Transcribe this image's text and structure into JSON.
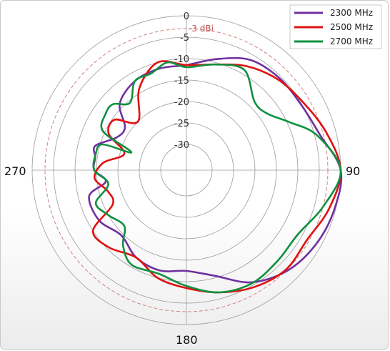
{
  "chart_data": {
    "type": "polar-line",
    "title": "",
    "radial_unit": "dBi",
    "radial_range": [
      -30,
      0
    ],
    "radial_ticks": [
      "0",
      "-5",
      "-10",
      "-15",
      "-20",
      "-25",
      "-30"
    ],
    "radial_tick_values": [
      0,
      -5,
      -10,
      -15,
      -20,
      -25,
      -30
    ],
    "reference_circle": {
      "value": -3,
      "label": "-3 dBi",
      "color": "#d08080",
      "dashed": true
    },
    "angle_labels": {
      "0": "",
      "90": "90",
      "180": "180",
      "270": "270"
    },
    "grid": true,
    "legend_position": "top-right",
    "series": [
      {
        "name": "2300 MHz",
        "color": "#7030a0",
        "theta": [
          0,
          15,
          30,
          45,
          60,
          75,
          90,
          105,
          120,
          135,
          150,
          165,
          180,
          195,
          210,
          225,
          240,
          255,
          262,
          270,
          278,
          285,
          295,
          305,
          315,
          330,
          345
        ],
        "r": [
          -11.5,
          -9.2,
          -6.3,
          -5.5,
          -5.2,
          -3.8,
          0,
          -0.3,
          -1.2,
          -2.8,
          -5.8,
          -10.5,
          -12.5,
          -11.8,
          -12.5,
          -14.5,
          -12.5,
          -12.5,
          -17,
          -14.5,
          -14.5,
          -14,
          -18,
          -18.5,
          -14,
          -12,
          -11.5
        ]
      },
      {
        "name": "2500 MHz",
        "color": "#e01010",
        "theta": [
          0,
          15,
          30,
          45,
          60,
          75,
          90,
          105,
          120,
          135,
          150,
          165,
          180,
          195,
          210,
          225,
          237,
          245,
          255,
          265,
          275,
          285,
          295,
          305,
          315,
          330,
          345
        ],
        "r": [
          -11.5,
          -10.5,
          -8,
          -6,
          -4.5,
          -2.2,
          0,
          -1.5,
          -3.5,
          -3.2,
          -4.5,
          -6.5,
          -8.5,
          -10,
          -12.5,
          -10.5,
          -10,
          -17,
          -17,
          -14.5,
          -16.5,
          -21,
          -16,
          -15.5,
          -20,
          -14,
          -10
        ]
      },
      {
        "name": "2700 MHz",
        "color": "#109040",
        "theta": [
          0,
          15,
          30,
          45,
          55,
          65,
          75,
          90,
          105,
          120,
          135,
          150,
          165,
          180,
          195,
          210,
          220,
          228,
          240,
          250,
          260,
          270,
          280,
          287,
          288,
          295,
          305,
          312,
          320,
          330,
          340,
          350
        ],
        "r": [
          -12,
          -10.5,
          -9,
          -13.5,
          -13,
          -9.5,
          -4.5,
          0,
          -3,
          -6,
          -6,
          -5.5,
          -6.5,
          -9,
          -11,
          -10.5,
          -13,
          -16.5,
          -15,
          -13.5,
          -17.5,
          -14.5,
          -14.5,
          -15.5,
          -22.5,
          -14.5,
          -13,
          -13,
          -15.5,
          -12,
          -12,
          -10.5
        ]
      }
    ]
  }
}
